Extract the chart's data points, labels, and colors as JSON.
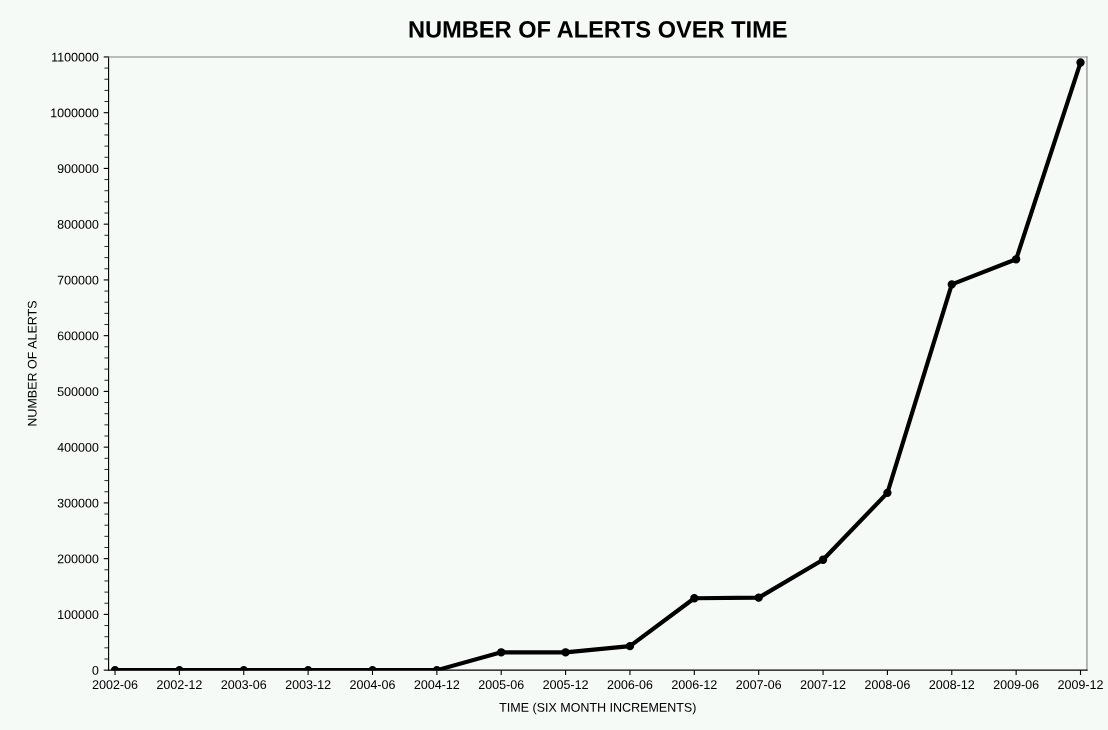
{
  "chart_data": {
    "type": "line",
    "title": "NUMBER OF ALERTS OVER TIME",
    "xlabel": "TIME (SIX MONTH INCREMENTS)",
    "ylabel": "NUMBER OF ALERTS",
    "categories": [
      "2002-06",
      "2002-12",
      "2003-06",
      "2003-12",
      "2004-06",
      "2004-12",
      "2005-06",
      "2005-12",
      "2006-06",
      "2006-12",
      "2007-06",
      "2007-12",
      "2008-06",
      "2008-12",
      "2009-06",
      "2009-12"
    ],
    "series": [
      {
        "color": "#000000",
        "values": [
          0,
          0,
          0,
          0,
          0,
          0,
          32000,
          32000,
          43000,
          129000,
          130000,
          198000,
          318000,
          692000,
          737000,
          1090000
        ]
      }
    ],
    "ylim": [
      0,
      1100000
    ],
    "yticks": [
      0,
      100000,
      200000,
      300000,
      400000,
      500000,
      600000,
      700000,
      800000,
      900000,
      1000000,
      1100000
    ],
    "grid": false,
    "marker": "circle",
    "line_style": "solid"
  }
}
